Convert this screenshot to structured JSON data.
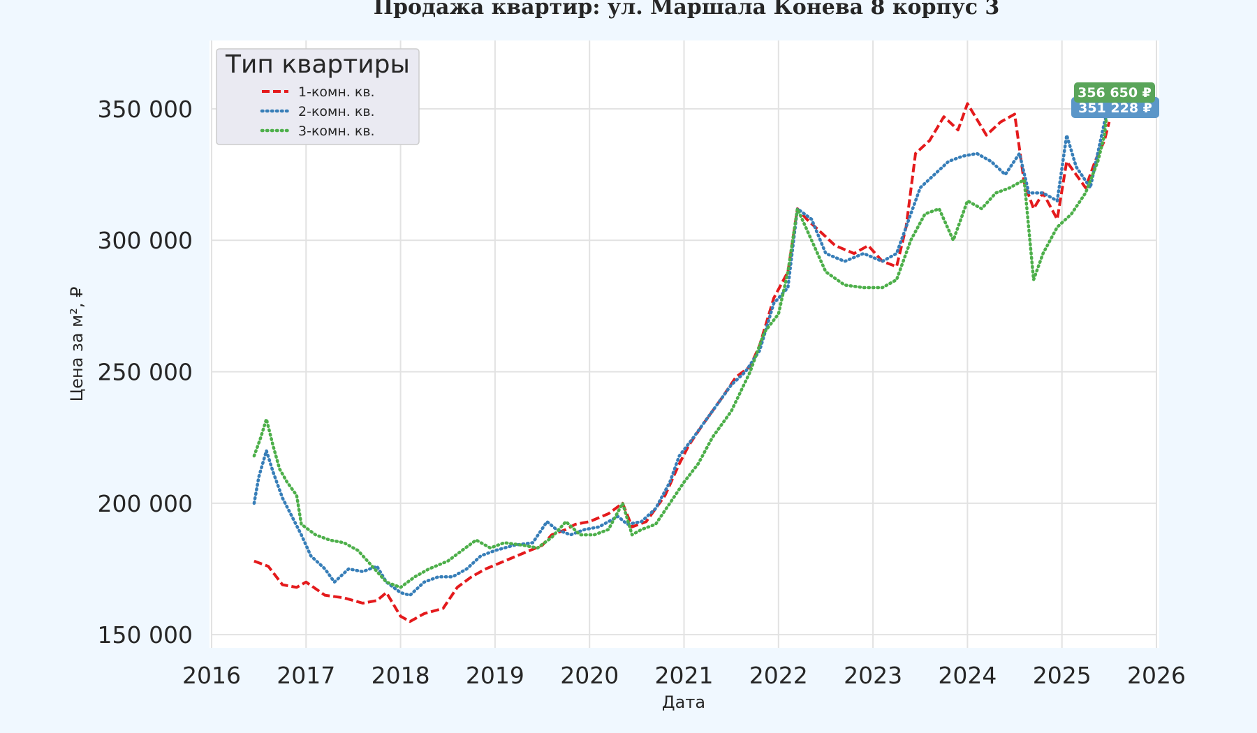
{
  "chart_data": {
    "type": "line",
    "title": "Продажа квартир: ул. Маршала Конева 8 корпус 3",
    "xlabel": "Дата",
    "ylabel": "Цена за м², ₽",
    "xlim": [
      2016,
      2026
    ],
    "ylim": [
      145000,
      376000
    ],
    "x_ticks": [
      2016,
      2017,
      2018,
      2019,
      2020,
      2021,
      2022,
      2023,
      2024,
      2025,
      2026
    ],
    "x_tick_labels": [
      "2016",
      "2017",
      "2018",
      "2019",
      "2020",
      "2021",
      "2022",
      "2023",
      "2024",
      "2025",
      "2026"
    ],
    "y_ticks": [
      150000,
      200000,
      250000,
      300000,
      350000
    ],
    "y_tick_labels": [
      "150 000",
      "200 000",
      "250 000",
      "300 000",
      "350 000"
    ],
    "grid": true,
    "legend": {
      "title": "Тип квартиры",
      "position": "top-left",
      "entries": [
        "1-комн. кв.",
        "2-комн. кв.",
        "3-комн. кв."
      ]
    },
    "end_labels": [
      {
        "text": "356 650 ₽",
        "series": "3-комн. кв.",
        "value": 356650
      },
      {
        "text": "351 228 ₽",
        "series": "2-комн. кв.",
        "value": 351228
      }
    ],
    "series": [
      {
        "name": "1-комн. кв.",
        "color": "#e41a1c",
        "style": "dashed",
        "x": [
          2016.45,
          2016.6,
          2016.75,
          2016.9,
          2017.0,
          2017.2,
          2017.4,
          2017.6,
          2017.75,
          2017.85,
          2018.0,
          2018.1,
          2018.25,
          2018.45,
          2018.6,
          2018.75,
          2018.9,
          2019.1,
          2019.3,
          2019.5,
          2019.6,
          2019.75,
          2019.85,
          2020.0,
          2020.2,
          2020.35,
          2020.45,
          2020.6,
          2020.8,
          2020.95,
          2021.05,
          2021.2,
          2021.4,
          2021.55,
          2021.7,
          2021.8,
          2021.95,
          2022.1,
          2022.2,
          2022.3,
          2022.45,
          2022.6,
          2022.8,
          2022.95,
          2023.1,
          2023.25,
          2023.35,
          2023.45,
          2023.6,
          2023.75,
          2023.9,
          2024.0,
          2024.2,
          2024.35,
          2024.5,
          2024.6,
          2024.7,
          2024.8,
          2024.95,
          2025.05,
          2025.15,
          2025.25,
          2025.35,
          2025.45,
          2025.5
        ],
        "values": [
          178000,
          176000,
          169000,
          168000,
          170000,
          165000,
          164000,
          162000,
          163000,
          166000,
          157000,
          155000,
          158000,
          160000,
          168000,
          172000,
          175000,
          178000,
          181000,
          184000,
          188000,
          190000,
          192000,
          193000,
          196000,
          200000,
          191000,
          193000,
          203000,
          215000,
          222000,
          230000,
          240000,
          248000,
          252000,
          260000,
          278000,
          288000,
          312000,
          308000,
          303000,
          298000,
          295000,
          298000,
          292000,
          290000,
          305000,
          333000,
          338000,
          347000,
          342000,
          352000,
          340000,
          345000,
          348000,
          322000,
          312000,
          318000,
          308000,
          330000,
          325000,
          320000,
          330000,
          338000,
          345000
        ]
      },
      {
        "name": "2-комн. кв.",
        "color": "#377eb8",
        "style": "dotted",
        "x": [
          2016.45,
          2016.5,
          2016.58,
          2016.65,
          2016.75,
          2016.85,
          2016.95,
          2017.05,
          2017.2,
          2017.3,
          2017.45,
          2017.6,
          2017.75,
          2017.85,
          2018.0,
          2018.1,
          2018.25,
          2018.4,
          2018.55,
          2018.7,
          2018.85,
          2019.0,
          2019.2,
          2019.4,
          2019.55,
          2019.65,
          2019.8,
          2019.95,
          2020.1,
          2020.3,
          2020.4,
          2020.55,
          2020.7,
          2020.85,
          2020.95,
          2021.1,
          2021.3,
          2021.5,
          2021.65,
          2021.8,
          2021.95,
          2022.1,
          2022.2,
          2022.35,
          2022.5,
          2022.7,
          2022.9,
          2023.1,
          2023.25,
          2023.4,
          2023.5,
          2023.65,
          2023.8,
          2023.95,
          2024.1,
          2024.25,
          2024.4,
          2024.55,
          2024.65,
          2024.8,
          2024.95,
          2025.05,
          2025.15,
          2025.3,
          2025.45,
          2025.5
        ],
        "values": [
          200000,
          210000,
          220000,
          212000,
          202000,
          195000,
          188000,
          180000,
          175000,
          170000,
          175000,
          174000,
          176000,
          170000,
          166000,
          165000,
          170000,
          172000,
          172000,
          175000,
          180000,
          182000,
          184000,
          185000,
          193000,
          190000,
          188000,
          190000,
          191000,
          195000,
          192000,
          193000,
          198000,
          208000,
          218000,
          225000,
          235000,
          245000,
          250000,
          258000,
          276000,
          282000,
          312000,
          308000,
          295000,
          292000,
          295000,
          292000,
          295000,
          310000,
          320000,
          325000,
          330000,
          332000,
          333000,
          330000,
          325000,
          333000,
          318000,
          318000,
          315000,
          340000,
          328000,
          320000,
          345000,
          351228
        ]
      },
      {
        "name": "3-комн. кв.",
        "color": "#4daf4a",
        "style": "dotted",
        "x": [
          2016.45,
          2016.52,
          2016.58,
          2016.65,
          2016.72,
          2016.8,
          2016.9,
          2016.95,
          2017.1,
          2017.25,
          2017.4,
          2017.55,
          2017.7,
          2017.85,
          2018.0,
          2018.15,
          2018.3,
          2018.5,
          2018.65,
          2018.8,
          2018.95,
          2019.1,
          2019.3,
          2019.45,
          2019.6,
          2019.75,
          2019.9,
          2020.05,
          2020.2,
          2020.35,
          2020.45,
          2020.55,
          2020.7,
          2020.85,
          2021.0,
          2021.15,
          2021.3,
          2021.5,
          2021.7,
          2021.85,
          2022.0,
          2022.1,
          2022.2,
          2022.35,
          2022.5,
          2022.7,
          2022.9,
          2023.1,
          2023.25,
          2023.4,
          2023.55,
          2023.7,
          2023.85,
          2024.0,
          2024.15,
          2024.3,
          2024.45,
          2024.6,
          2024.7,
          2024.8,
          2024.95,
          2025.1,
          2025.25,
          2025.38,
          2025.45,
          2025.5
        ],
        "values": [
          218000,
          225000,
          232000,
          222000,
          213000,
          208000,
          203000,
          192000,
          188000,
          186000,
          185000,
          182000,
          176000,
          170000,
          168000,
          172000,
          175000,
          178000,
          182000,
          186000,
          183000,
          185000,
          184000,
          183000,
          187000,
          193000,
          188000,
          188000,
          190000,
          200000,
          188000,
          190000,
          192000,
          200000,
          208000,
          215000,
          225000,
          235000,
          250000,
          265000,
          272000,
          288000,
          312000,
          300000,
          288000,
          283000,
          282000,
          282000,
          285000,
          300000,
          310000,
          312000,
          300000,
          315000,
          312000,
          318000,
          320000,
          323000,
          285000,
          295000,
          305000,
          310000,
          318000,
          330000,
          340000,
          356650
        ]
      }
    ]
  }
}
